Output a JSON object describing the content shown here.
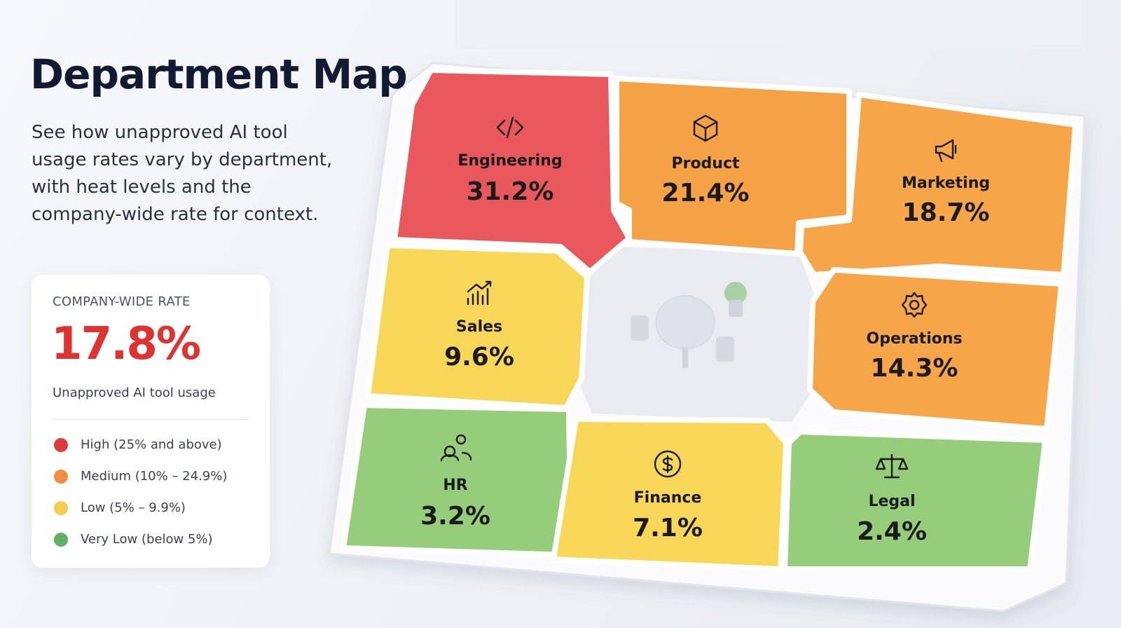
{
  "header": {
    "title": "Department Map",
    "description": "See how unapproved AI tool usage rates vary by department, with heat levels and the company-wide rate for context."
  },
  "summary": {
    "label": "COMPANY-WIDE RATE",
    "value": "17.8%",
    "value_color": "#e0322f",
    "caption": "Unapproved AI tool usage"
  },
  "legend": [
    {
      "label": "High (25% and above)",
      "color": "#df3b3b"
    },
    {
      "label": "Medium (10% – 24.9%)",
      "color": "#f28d3f"
    },
    {
      "label": "Low (5% – 9.9%)",
      "color": "#f7cb4c"
    },
    {
      "label": "Very Low (below 5%)",
      "color": "#62b062"
    }
  ],
  "departments": [
    {
      "name": "Engineering",
      "rate": "31.2%",
      "color": "#e9585d"
    },
    {
      "name": "Product",
      "rate": "21.4%",
      "color": "#f5a246"
    },
    {
      "name": "Marketing",
      "rate": "18.7%",
      "color": "#f6a548"
    },
    {
      "name": "Sales",
      "rate": "9.6%",
      "color": "#f8d657"
    },
    {
      "name": "Operations",
      "rate": "14.3%",
      "color": "#f6a548"
    },
    {
      "name": "HR",
      "rate": "3.2%",
      "color": "#96cd7a"
    },
    {
      "name": "Finance",
      "rate": "7.1%",
      "color": "#f8d657"
    },
    {
      "name": "Legal",
      "rate": "2.4%",
      "color": "#96cd7a"
    }
  ]
}
